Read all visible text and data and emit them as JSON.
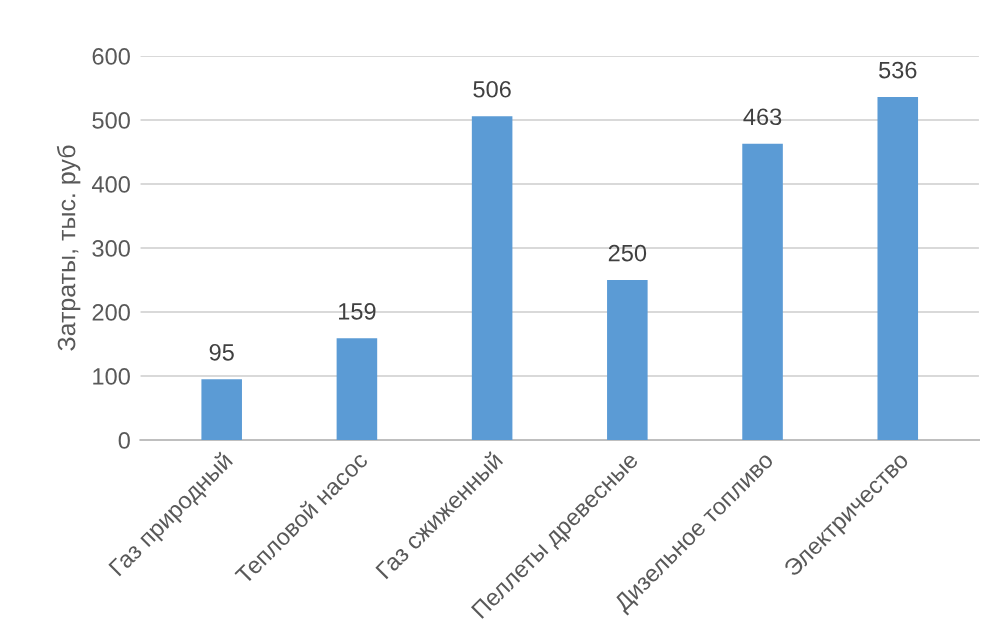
{
  "chart_data": {
    "type": "bar",
    "categories": [
      "Газ природный",
      "Тепловой насос",
      "Газ сжиженный",
      "Пеллеты древесные",
      "Дизельное топливо",
      "Электричество"
    ],
    "values": [
      95,
      159,
      506,
      250,
      463,
      536
    ],
    "color": "#5b9bd5",
    "ylabel": "Затраты, тыс. руб",
    "ylim": [
      0,
      600
    ],
    "yticks": [
      0,
      100,
      200,
      300,
      400,
      500,
      600
    ],
    "grid": "y",
    "data_labels": true
  }
}
